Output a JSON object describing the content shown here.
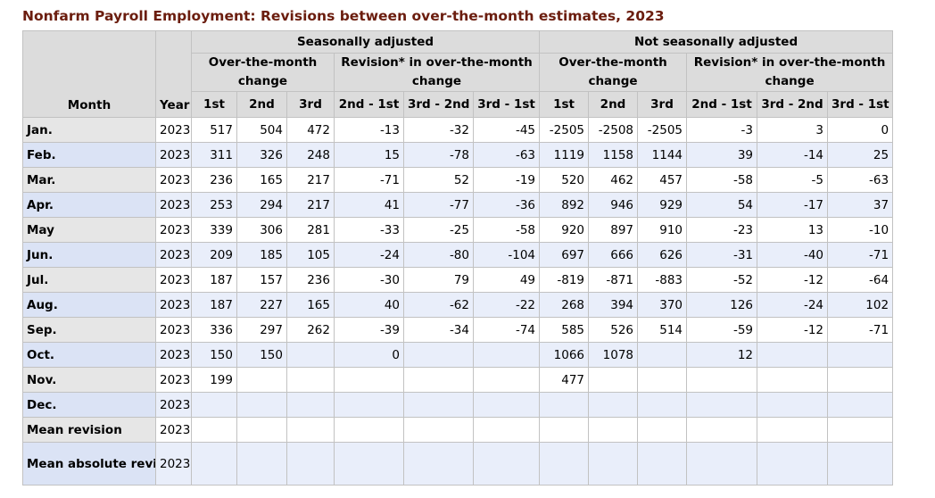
{
  "title": "Nonfarm Payroll Employment: Revisions between over-the-month estimates, 2023",
  "headers": {
    "month": "Month",
    "year": "Year",
    "sa": "Seasonally adjusted",
    "nsa": "Not seasonally adjusted",
    "otm": "Over-the-month change",
    "rev": "Revision* in over-the-month change",
    "c1": "1st",
    "c2": "2nd",
    "c3": "3rd",
    "r21": "2nd - 1st",
    "r32": "3rd - 2nd",
    "r31": "3rd - 1st"
  },
  "rows": [
    [
      "Jan.",
      "2023",
      "517",
      "504",
      "472",
      "-13",
      "-32",
      "-45",
      "-2505",
      "-2508",
      "-2505",
      "-3",
      "3",
      "0"
    ],
    [
      "Feb.",
      "2023",
      "311",
      "326",
      "248",
      "15",
      "-78",
      "-63",
      "1119",
      "1158",
      "1144",
      "39",
      "-14",
      "25"
    ],
    [
      "Mar.",
      "2023",
      "236",
      "165",
      "217",
      "-71",
      "52",
      "-19",
      "520",
      "462",
      "457",
      "-58",
      "-5",
      "-63"
    ],
    [
      "Apr.",
      "2023",
      "253",
      "294",
      "217",
      "41",
      "-77",
      "-36",
      "892",
      "946",
      "929",
      "54",
      "-17",
      "37"
    ],
    [
      "May",
      "2023",
      "339",
      "306",
      "281",
      "-33",
      "-25",
      "-58",
      "920",
      "897",
      "910",
      "-23",
      "13",
      "-10"
    ],
    [
      "Jun.",
      "2023",
      "209",
      "185",
      "105",
      "-24",
      "-80",
      "-104",
      "697",
      "666",
      "626",
      "-31",
      "-40",
      "-71"
    ],
    [
      "Jul.",
      "2023",
      "187",
      "157",
      "236",
      "-30",
      "79",
      "49",
      "-819",
      "-871",
      "-883",
      "-52",
      "-12",
      "-64"
    ],
    [
      "Aug.",
      "2023",
      "187",
      "227",
      "165",
      "40",
      "-62",
      "-22",
      "268",
      "394",
      "370",
      "126",
      "-24",
      "102"
    ],
    [
      "Sep.",
      "2023",
      "336",
      "297",
      "262",
      "-39",
      "-34",
      "-74",
      "585",
      "526",
      "514",
      "-59",
      "-12",
      "-71"
    ],
    [
      "Oct.",
      "2023",
      "150",
      "150",
      "",
      "0",
      "",
      "",
      "1066",
      "1078",
      "",
      "12",
      "",
      ""
    ],
    [
      "Nov.",
      "2023",
      "199",
      "",
      "",
      "",
      "",
      "",
      "477",
      "",
      "",
      "",
      "",
      ""
    ],
    [
      "Dec.",
      "2023",
      "",
      "",
      "",
      "",
      "",
      "",
      "",
      "",
      "",
      "",
      "",
      ""
    ],
    [
      "Mean revision",
      "2023",
      "",
      "",
      "",
      "",
      "",
      "",
      "",
      "",
      "",
      "",
      "",
      ""
    ],
    [
      "Mean absolute revision",
      "2023",
      "",
      "",
      "",
      "",
      "",
      "",
      "",
      "",
      "",
      "",
      "",
      ""
    ]
  ]
}
